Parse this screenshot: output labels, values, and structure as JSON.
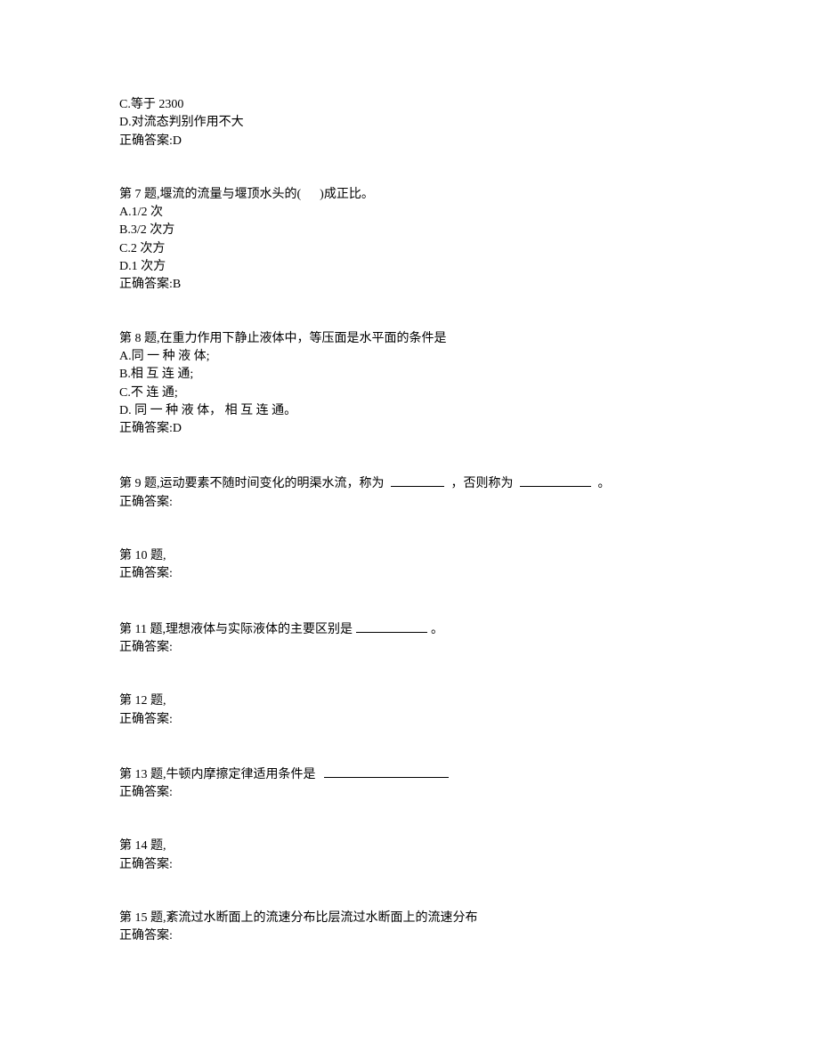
{
  "q6": {
    "optC": "C.等于 2300",
    "optD": "D.对流态判别作用不大",
    "answer": "正确答案:D"
  },
  "q7": {
    "stem": "第 7 题,堰流的流量与堰顶水头的(      )成正比。",
    "optA": "A.1/2 次",
    "optB": "B.3/2 次方",
    "optC": "C.2 次方",
    "optD": "D.1 次方",
    "answer": "正确答案:B"
  },
  "q8": {
    "stem": "第 8 题,在重力作用下静止液体中，等压面是水平面的条件是",
    "optA": "A.同 一 种 液 体;",
    "optB": "B.相 互 连 通;",
    "optC": "C.不 连 通;",
    "optD": "D. 同 一 种 液 体， 相 互 连 通。",
    "answer": "正确答案:D"
  },
  "q9": {
    "stem_a": "第 9 题,运动要素不随时间变化的明渠水流，称为 ",
    "stem_b": " ，否则称为 ",
    "stem_c": " 。",
    "answer": "正确答案:"
  },
  "q10": {
    "stem": "第 10 题,",
    "answer": "正确答案:"
  },
  "q11": {
    "stem_a": "第 11 题,理想液体与实际液体的主要区别是",
    "stem_b": "。",
    "answer": "正确答案:"
  },
  "q12": {
    "stem": "第 12 题,",
    "answer": "正确答案:"
  },
  "q13": {
    "stem": "第 13 题,牛顿内摩擦定律适用条件是  ",
    "answer": "正确答案:"
  },
  "q14": {
    "stem": "第 14 题,",
    "answer": "正确答案:"
  },
  "q15": {
    "stem": "第 15 题,紊流过水断面上的流速分布比层流过水断面上的流速分布",
    "answer": "正确答案:"
  }
}
